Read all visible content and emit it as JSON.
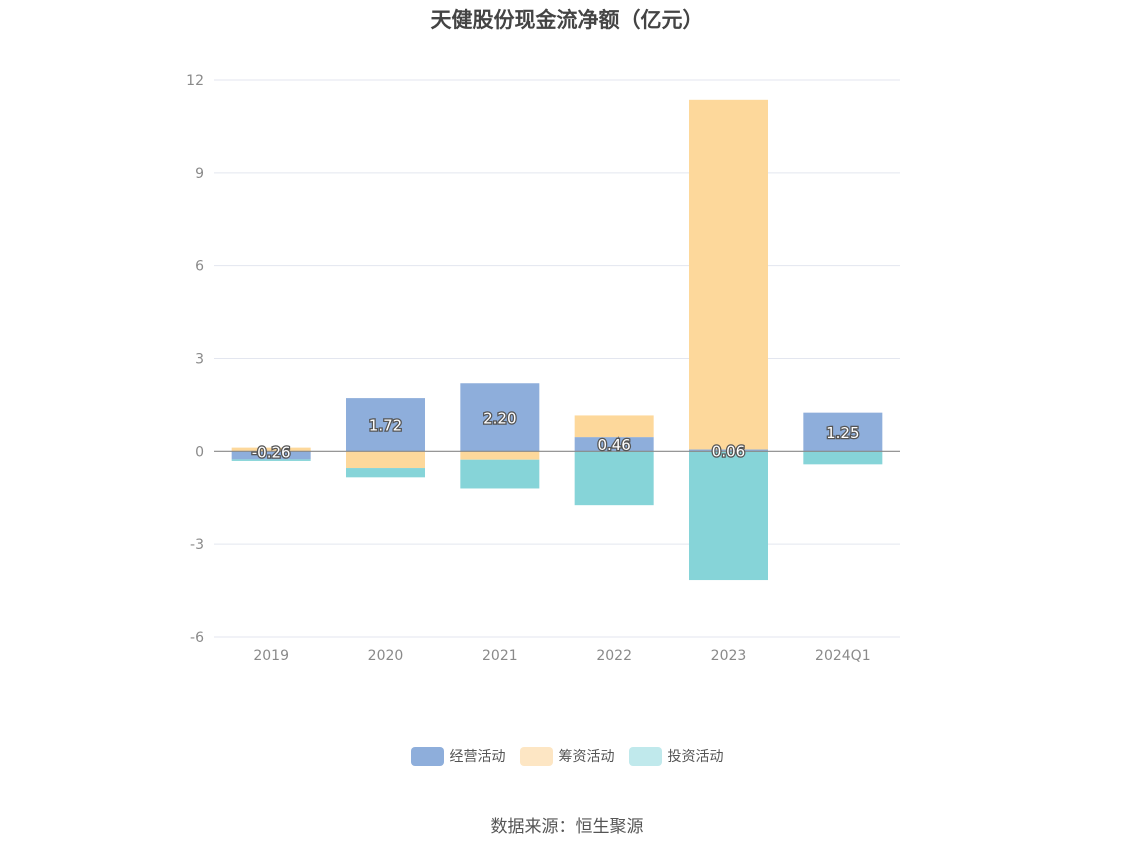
{
  "chart_data": {
    "type": "bar",
    "stacked": true,
    "title": "天健股份现金流净额（亿元）",
    "categories": [
      "2019",
      "2020",
      "2021",
      "2022",
      "2023",
      "2024Q1"
    ],
    "series": [
      {
        "name": "经营活动",
        "color": "#8eaedb",
        "values": [
          -0.26,
          1.72,
          2.2,
          0.46,
          0.06,
          1.25
        ],
        "labels": [
          "-0.26",
          "1.72",
          "2.20",
          "0.46",
          "0.06",
          "1.25"
        ]
      },
      {
        "name": "筹资活动",
        "color": "#fdd89b",
        "values": [
          0.12,
          -0.54,
          -0.27,
          0.7,
          11.3,
          0.0
        ]
      },
      {
        "name": "投资活动",
        "color": "#86d4d8",
        "values": [
          -0.05,
          -0.3,
          -0.93,
          -1.74,
          -4.16,
          -0.42
        ]
      }
    ],
    "legend_colors": [
      "#8eaedb",
      "#fde6c4",
      "#c0e9ec"
    ],
    "ylim": [
      -6,
      12
    ],
    "yticks": [
      "-6",
      "-3",
      "0",
      "3",
      "6",
      "9",
      "12"
    ],
    "legend_position": "bottom",
    "grid": true
  },
  "source": "数据来源：恒生聚源"
}
